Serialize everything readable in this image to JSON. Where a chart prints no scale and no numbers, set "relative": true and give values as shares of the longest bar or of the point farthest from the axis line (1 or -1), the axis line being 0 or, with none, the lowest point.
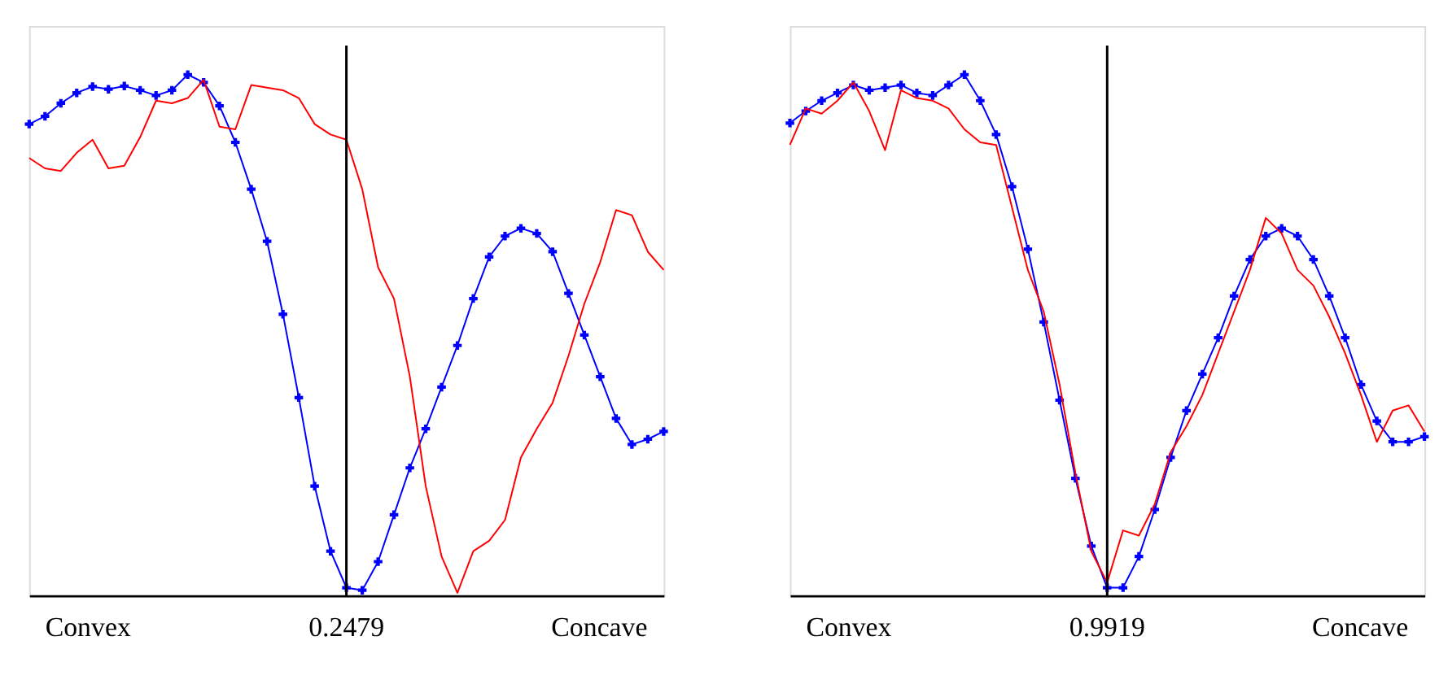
{
  "chart_data": [
    {
      "type": "line",
      "relative": true,
      "tick_labels": false,
      "grid": false,
      "categories": [
        null,
        null,
        null,
        null,
        null,
        null,
        null,
        null,
        null,
        null,
        null,
        null,
        null,
        null,
        null,
        null,
        null,
        null,
        null,
        null,
        null,
        null,
        null,
        null,
        null,
        null,
        null,
        null,
        null,
        null,
        null,
        null,
        null,
        null,
        null,
        null,
        null,
        null,
        null,
        null,
        null
      ],
      "series": [
        {
          "marker": "cross",
          "color": "#0000ff",
          "values": [
            0.905,
            0.92,
            0.945,
            0.965,
            0.977,
            0.972,
            0.978,
            0.97,
            0.96,
            0.97,
            1.0,
            0.985,
            0.94,
            0.87,
            0.78,
            0.68,
            0.54,
            0.38,
            0.21,
            0.085,
            0.015,
            0.01,
            0.065,
            0.155,
            0.245,
            0.32,
            0.4,
            0.48,
            0.57,
            0.65,
            0.69,
            0.705,
            0.695,
            0.66,
            0.58,
            0.5,
            0.42,
            0.34,
            0.29,
            0.3,
            0.315
          ]
        },
        {
          "color": "#ff0000",
          "values": [
            0.84,
            0.82,
            0.815,
            0.85,
            0.875,
            0.82,
            0.825,
            0.88,
            0.95,
            0.945,
            0.955,
            0.99,
            0.9,
            0.895,
            0.98,
            0.975,
            0.97,
            0.955,
            0.905,
            0.885,
            0.875,
            0.78,
            0.63,
            0.57,
            0.42,
            0.21,
            0.075,
            0.005,
            0.085,
            0.105,
            0.145,
            0.265,
            0.32,
            0.37,
            0.46,
            0.56,
            0.64,
            0.74,
            0.73,
            0.66,
            0.625
          ]
        }
      ],
      "annotations": [
        "Convex",
        "0.2479",
        "Concave"
      ]
    },
    {
      "type": "line",
      "relative": true,
      "tick_labels": false,
      "grid": false,
      "categories": [
        null,
        null,
        null,
        null,
        null,
        null,
        null,
        null,
        null,
        null,
        null,
        null,
        null,
        null,
        null,
        null,
        null,
        null,
        null,
        null,
        null,
        null,
        null,
        null,
        null,
        null,
        null,
        null,
        null,
        null,
        null,
        null,
        null,
        null,
        null,
        null,
        null,
        null,
        null,
        null,
        null
      ],
      "series": [
        {
          "marker": "cross",
          "color": "#0000ff",
          "values": [
            0.907,
            0.93,
            0.95,
            0.965,
            0.98,
            0.97,
            0.975,
            0.98,
            0.965,
            0.96,
            0.98,
            1.0,
            0.95,
            0.885,
            0.785,
            0.665,
            0.525,
            0.375,
            0.225,
            0.095,
            0.015,
            0.015,
            0.075,
            0.165,
            0.265,
            0.355,
            0.425,
            0.495,
            0.575,
            0.645,
            0.69,
            0.705,
            0.69,
            0.645,
            0.575,
            0.495,
            0.405,
            0.335,
            0.295,
            0.295,
            0.305
          ]
        },
        {
          "color": "#ff0000",
          "values": [
            0.865,
            0.935,
            0.925,
            0.95,
            0.985,
            0.93,
            0.855,
            0.97,
            0.955,
            0.95,
            0.935,
            0.895,
            0.87,
            0.865,
            0.745,
            0.625,
            0.545,
            0.405,
            0.235,
            0.085,
            0.025,
            0.125,
            0.115,
            0.175,
            0.275,
            0.325,
            0.385,
            0.465,
            0.545,
            0.625,
            0.725,
            0.695,
            0.625,
            0.595,
            0.535,
            0.465,
            0.385,
            0.295,
            0.355,
            0.365,
            0.315
          ]
        }
      ],
      "annotations": [
        "Convex",
        "0.9919",
        "Concave"
      ]
    }
  ]
}
